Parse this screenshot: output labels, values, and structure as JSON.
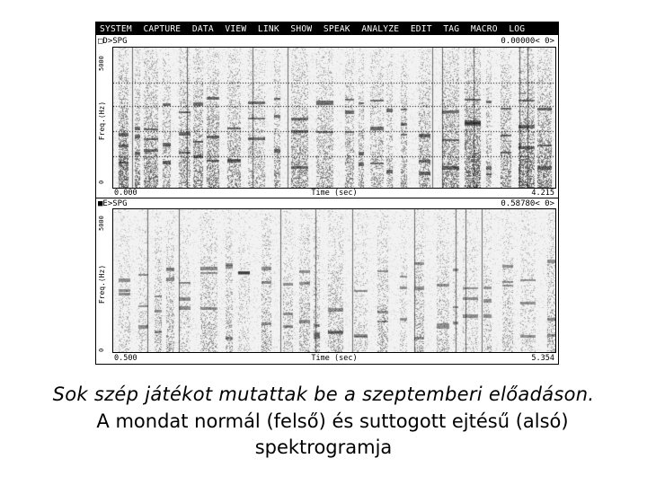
{
  "menu": [
    "SYSTEM",
    "CAPTURE",
    "DATA",
    "VIEW",
    "LINK",
    "SHOW",
    "SPEAK",
    "ANALYZE",
    "EDIT",
    "TAG",
    "MACRO",
    "LOG"
  ],
  "top_panel": {
    "label": "□D>SPG",
    "readout": "0.00000<      0>",
    "y_axis": "Freq.(Hz)",
    "y_top": "5000",
    "y_bottom": "0",
    "time_start": "0.000",
    "time_label": "Time (sec)",
    "time_end": "4.215",
    "voiced_density": 0.8
  },
  "bottom_panel": {
    "label": "■E>SPG",
    "readout": "0.58780<      0>",
    "y_axis": "Freq.(Hz)",
    "y_top": "5000",
    "y_bottom": "0",
    "time_start": "0.500",
    "time_label": "Time (sec)",
    "time_end": "5.354",
    "voiced_density": 0.45
  },
  "caption": {
    "line1": "Sok szép játékot mutattak be a szeptemberi előadáson.",
    "line2": "A mondat normál (felső) és suttogott ejtésű (alsó)",
    "line3": "spektrogramja"
  }
}
